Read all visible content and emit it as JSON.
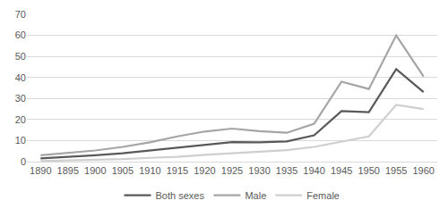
{
  "chart_data": {
    "type": "line",
    "categories": [
      "1890",
      "1895",
      "1900",
      "1905",
      "1910",
      "1915",
      "1920",
      "1925",
      "1930",
      "1935",
      "1940",
      "1945",
      "1950",
      "1955",
      "1960"
    ],
    "series": [
      {
        "name": "Both sexes",
        "color": "#595959",
        "values": [
          1.5,
          2.2,
          3,
          4,
          5.3,
          6.8,
          8.2,
          9.3,
          9.2,
          9.6,
          12.5,
          24,
          23.5,
          44,
          33
        ]
      },
      {
        "name": "Male",
        "color": "#a5a5a5",
        "values": [
          3,
          4,
          5.3,
          7,
          9.2,
          12,
          14.3,
          15.7,
          14.5,
          13.7,
          18,
          38,
          34.5,
          60,
          40.5
        ]
      },
      {
        "name": "Female",
        "color": "#cfcfcf",
        "values": [
          0.3,
          0.5,
          0.8,
          1.2,
          1.8,
          2.3,
          3.2,
          3.9,
          4.5,
          5.5,
          7,
          9.5,
          12,
          27,
          25
        ]
      }
    ],
    "ylim": [
      0,
      70
    ],
    "yticks": [
      0,
      10,
      20,
      30,
      40,
      50,
      60,
      70
    ],
    "grid": true,
    "legend": "bottom"
  }
}
